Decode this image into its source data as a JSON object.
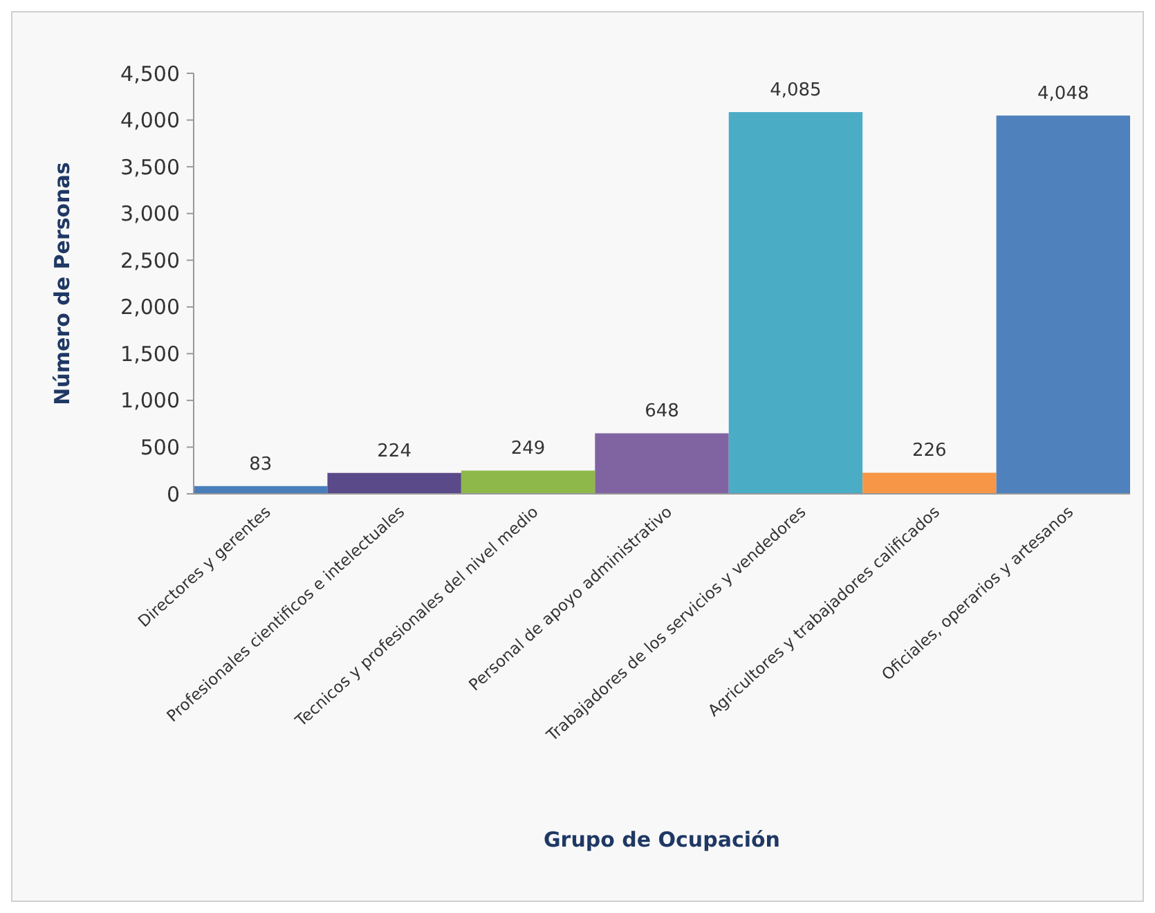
{
  "chart_data": {
    "type": "bar",
    "xlabel": "Grupo de Ocupación",
    "ylabel": "Número de Personas",
    "categories": [
      "Directores y gerentes",
      "Profesionales cientificos e intelectuales",
      "Tecnicos y profesionales del nivel medio",
      "Personal de apoyo administrativo",
      "Trabajadores de los servicios y vendedores",
      "Agricultores y trabajadores calificados",
      "Oficiales, operarios y artesanos"
    ],
    "values": [
      83,
      224,
      249,
      648,
      4085,
      226,
      4048
    ],
    "colors": [
      "#4a7ebb",
      "#5b4a8a",
      "#8fb84a",
      "#8064a2",
      "#4bacc6",
      "#f79646",
      "#4f81bd"
    ],
    "value_labels": [
      "83",
      "224",
      "249",
      "648",
      "4,085",
      "226",
      "4,048"
    ],
    "ylim": [
      0,
      4500
    ],
    "yticks": [
      {
        "value": 0,
        "label": "0"
      },
      {
        "value": 500,
        "label": "500"
      },
      {
        "value": 1000,
        "label": "1,000"
      },
      {
        "value": 1500,
        "label": "1,500"
      },
      {
        "value": 2000,
        "label": "2,000"
      },
      {
        "value": 2500,
        "label": "2,500"
      },
      {
        "value": 3000,
        "label": "3,000"
      },
      {
        "value": 3500,
        "label": "3,500"
      },
      {
        "value": 4000,
        "label": "4,000"
      },
      {
        "value": 4500,
        "label": "4,500"
      }
    ],
    "grid": false
  }
}
